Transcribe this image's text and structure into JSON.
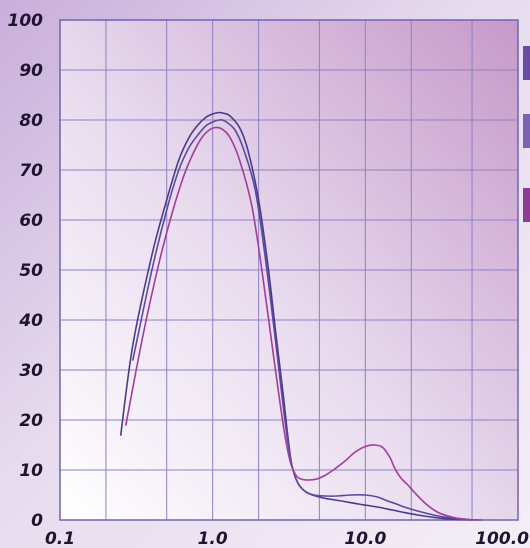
{
  "chart_data": {
    "type": "line",
    "title": "",
    "xlabel": "",
    "ylabel": "",
    "x_scale": "log",
    "xlim": [
      0.1,
      100.0
    ],
    "ylim": [
      0,
      100
    ],
    "grid": true,
    "x_tick_labels": [
      "0.1",
      "1.0",
      "10.0",
      "100.0"
    ],
    "x_grid_values": [
      0.1,
      0.2,
      0.5,
      1.0,
      2.0,
      5.0,
      10.0,
      20.0,
      50.0,
      100.0
    ],
    "y_ticks": [
      0,
      10,
      20,
      30,
      40,
      50,
      60,
      70,
      80,
      90,
      100
    ],
    "y_tick_labels": [
      "0",
      "10",
      "20",
      "30",
      "40",
      "50",
      "60",
      "70",
      "80",
      "90",
      "100"
    ],
    "legend": {
      "placement": "right, clipped at edge",
      "marker_colors": [
        "#6a4ba3",
        "#7a63b0",
        "#8e3a96"
      ]
    },
    "series": [
      {
        "color": "#4a3a8c",
        "x": [
          0.25,
          0.3,
          0.4,
          0.5,
          0.6,
          0.7,
          0.8,
          0.9,
          1.0,
          1.1,
          1.2,
          1.3,
          1.5,
          1.7,
          2.0,
          2.3,
          2.6,
          2.9,
          3.1,
          3.3,
          3.6,
          4.0,
          4.5,
          5.5,
          7.0,
          9.0,
          12.0,
          15.0,
          18.0,
          22.0,
          27.0,
          35.0,
          45.0,
          50.0
        ],
        "y": [
          17,
          35,
          53,
          64,
          72,
          76.5,
          79,
          80.5,
          81.2,
          81.5,
          81.3,
          80.8,
          78.5,
          74,
          64,
          51,
          37,
          25,
          17,
          11,
          7.5,
          5.8,
          5.0,
          4.3,
          3.8,
          3.2,
          2.6,
          2.0,
          1.5,
          1.0,
          0.6,
          0.2,
          0.05,
          0
        ]
      },
      {
        "color": "#5c4a9c",
        "x": [
          0.3,
          0.4,
          0.5,
          0.6,
          0.7,
          0.8,
          0.9,
          1.0,
          1.1,
          1.2,
          1.4,
          1.6,
          1.9,
          2.2,
          2.6,
          3.0,
          3.3,
          3.6,
          4.0,
          4.6,
          5.5,
          6.5,
          8.0,
          10.0,
          12.0,
          14.0,
          16.0,
          18.0,
          22.0,
          28.0,
          36.0,
          46.0,
          55.0
        ],
        "y": [
          32,
          50,
          62,
          70,
          74.5,
          77,
          78.8,
          79.6,
          80,
          79.8,
          78,
          74,
          66,
          53,
          35,
          19,
          11,
          7.5,
          5.8,
          5.0,
          4.8,
          4.8,
          5.0,
          5.0,
          4.6,
          3.8,
          3.2,
          2.6,
          1.8,
          1.0,
          0.4,
          0.1,
          0
        ]
      },
      {
        "color": "#a23c9e",
        "x": [
          0.27,
          0.35,
          0.45,
          0.55,
          0.65,
          0.75,
          0.85,
          0.95,
          1.05,
          1.15,
          1.3,
          1.5,
          1.8,
          2.1,
          2.5,
          2.9,
          3.2,
          3.5,
          3.8,
          4.2,
          4.8,
          5.5,
          6.5,
          7.5,
          8.5,
          10.0,
          11.5,
          13.0,
          14.5,
          15.5,
          17.0,
          19.0,
          21.0,
          25.0,
          30.0,
          38.0,
          48.0,
          58.0
        ],
        "y": [
          19,
          37,
          52,
          62,
          69,
          73.5,
          76.5,
          78,
          78.5,
          78.2,
          76.5,
          72,
          63,
          50,
          33,
          19,
          12,
          9,
          8.2,
          8.0,
          8.2,
          9.0,
          10.5,
          12.0,
          13.5,
          14.7,
          15.0,
          14.5,
          12.5,
          10.5,
          8.5,
          7.0,
          5.5,
          3.2,
          1.5,
          0.5,
          0.1,
          0
        ]
      }
    ]
  }
}
